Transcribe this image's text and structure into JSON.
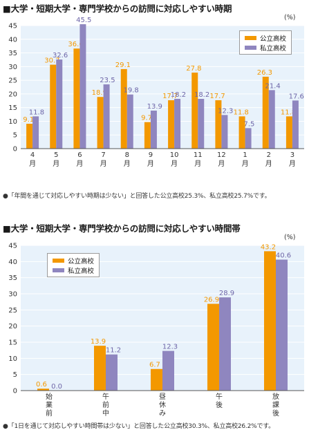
{
  "colors": {
    "public": "#f39800",
    "private": "#8f86bf",
    "grid": "#ffffff",
    "plot_bg": "#e8f2fb"
  },
  "chart_data": [
    {
      "type": "bar",
      "title": "■大学・短期大学・専門学校からの訪問に対応しやすい時期",
      "unit": "(%)",
      "categories": [
        [
          "4",
          "月"
        ],
        [
          "5",
          "月"
        ],
        [
          "6",
          "月"
        ],
        [
          "7",
          "月"
        ],
        [
          "8",
          "月"
        ],
        [
          "9",
          "月"
        ],
        [
          "10",
          "月"
        ],
        [
          "11",
          "月"
        ],
        [
          "12",
          "月"
        ],
        [
          "1",
          "月"
        ],
        [
          "2",
          "月"
        ],
        [
          "3",
          "月"
        ]
      ],
      "yticks": [
        "0",
        "5",
        "10",
        "15",
        "20",
        "25",
        "30",
        "35",
        "40",
        "45"
      ],
      "ylim": [
        0,
        45
      ],
      "legend": {
        "position": "top-right",
        "items": [
          "公立高校",
          "私立高校"
        ]
      },
      "series": [
        {
          "name": "公立高校",
          "values": [
            9.1,
            30.7,
            36.6,
            18.9,
            29.1,
            9.7,
            17.7,
            27.8,
            17.7,
            11.8,
            26.3,
            11.8
          ]
        },
        {
          "name": "私立高校",
          "values": [
            11.8,
            32.6,
            45.5,
            23.5,
            19.8,
            13.9,
            18.2,
            18.2,
            12.3,
            7.5,
            21.4,
            17.6
          ]
        }
      ],
      "note": "●「年間を通じて対応しやすい時期は少ない」と回答した公立高校25.3%、私立高校25.7%です。"
    },
    {
      "type": "bar",
      "title": "■大学・短期大学・専門学校からの訪問に対応しやすい時間帯",
      "unit": "(%)",
      "categories": [
        [
          "始",
          "業",
          "前"
        ],
        [
          "午",
          "前",
          "中"
        ],
        [
          "昼",
          "休",
          "み"
        ],
        [
          "午",
          "後"
        ],
        [
          "放",
          "課",
          "後"
        ]
      ],
      "yticks": [
        "0",
        "5",
        "10",
        "15",
        "20",
        "25",
        "30",
        "35",
        "40",
        "45"
      ],
      "ylim": [
        0,
        45
      ],
      "legend": {
        "position": "top-left",
        "items": [
          "公立高校",
          "私立高校"
        ]
      },
      "series": [
        {
          "name": "公立高校",
          "values": [
            0.6,
            13.9,
            6.7,
            26.9,
            43.2
          ]
        },
        {
          "name": "私立高校",
          "values": [
            0.0,
            11.2,
            12.3,
            28.9,
            40.6
          ]
        }
      ],
      "note": "●「1日を通じて対応しやすい時間帯は少ない」と回答した公立高校30.3%、私立高校26.2%です。"
    }
  ]
}
